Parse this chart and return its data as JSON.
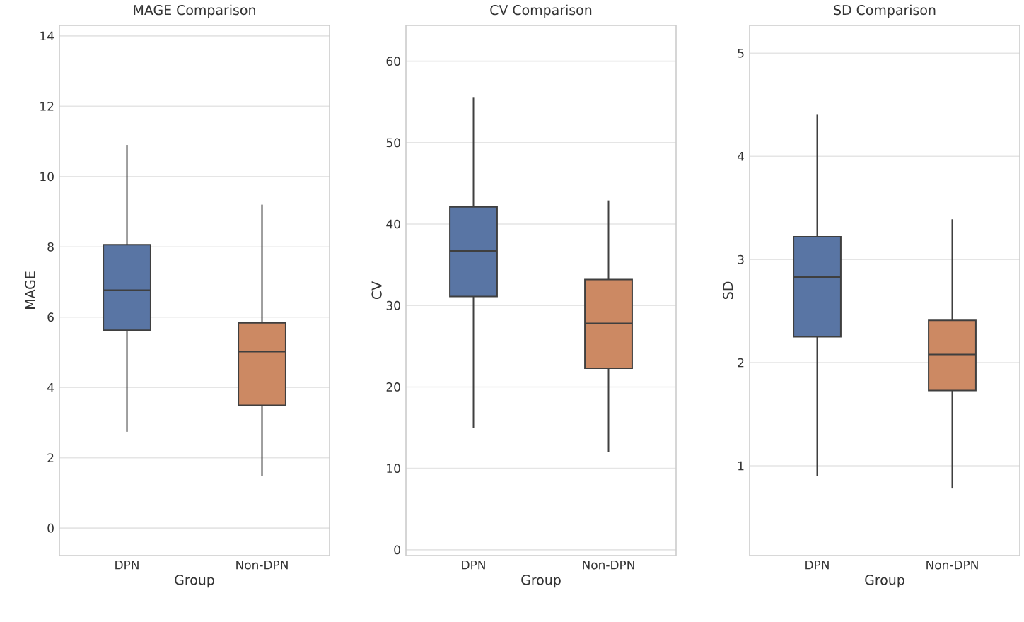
{
  "chart_data": [
    {
      "type": "box",
      "title": "MAGE Comparison",
      "xlabel": "Group",
      "ylabel": "MAGE",
      "categories": [
        "DPN",
        "Non-DPN"
      ],
      "colors": [
        "#5975a4",
        "#cc8963"
      ],
      "boxes": [
        {
          "low": 2.74,
          "q1": 5.63,
          "median": 6.77,
          "q3": 8.06,
          "high": 10.9
        },
        {
          "low": 1.47,
          "q1": 3.49,
          "median": 5.02,
          "q3": 5.84,
          "high": 9.2
        }
      ],
      "ylim": [
        -0.78,
        14.3
      ],
      "yticks": [
        0,
        2,
        4,
        6,
        8,
        10,
        12,
        14
      ],
      "grid": "y"
    },
    {
      "type": "box",
      "title": "CV Comparison",
      "xlabel": "Group",
      "ylabel": "CV",
      "categories": [
        "DPN",
        "Non-DPN"
      ],
      "colors": [
        "#5975a4",
        "#cc8963"
      ],
      "boxes": [
        {
          "low": 15,
          "q1": 31.1,
          "median": 36.7,
          "q3": 42.1,
          "high": 55.6
        },
        {
          "low": 12.0,
          "q1": 22.3,
          "median": 27.8,
          "q3": 33.2,
          "high": 42.9
        }
      ],
      "ylim": [
        -0.7,
        64.4
      ],
      "yticks": [
        0,
        10,
        20,
        30,
        40,
        50,
        60
      ],
      "grid": "y"
    },
    {
      "type": "box",
      "title": "SD Comparison",
      "xlabel": "Group",
      "ylabel": "SD",
      "categories": [
        "DPN",
        "Non-DPN"
      ],
      "colors": [
        "#5975a4",
        "#cc8963"
      ],
      "boxes": [
        {
          "low": 0.9,
          "q1": 2.25,
          "median": 2.83,
          "q3": 3.22,
          "high": 4.41
        },
        {
          "low": 0.78,
          "q1": 1.73,
          "median": 2.08,
          "q3": 2.41,
          "high": 3.39
        }
      ],
      "ylim": [
        0.13,
        5.27
      ],
      "yticks": [
        1,
        2,
        3,
        4,
        5
      ],
      "grid": "y"
    }
  ]
}
